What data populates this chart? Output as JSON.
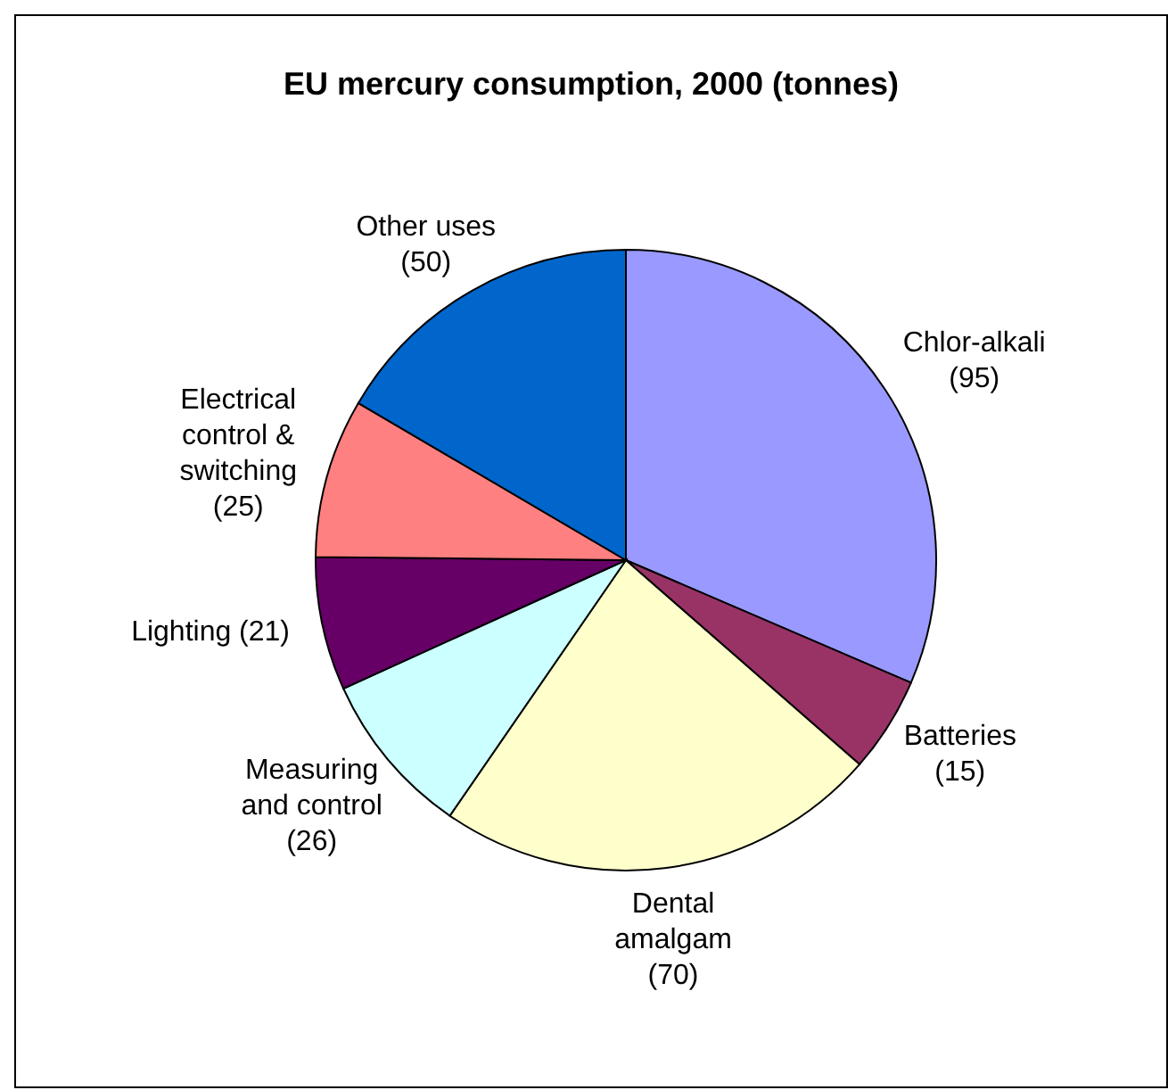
{
  "chart_data": {
    "type": "pie",
    "title": "EU mercury consumption, 2000 (tonnes)",
    "categories": [
      "Chlor-alkali",
      "Batteries",
      "Dental amalgam",
      "Measuring and control",
      "Lighting",
      "Electrical control & switching",
      "Other uses"
    ],
    "values": [
      95,
      15,
      70,
      26,
      21,
      25,
      50
    ],
    "colors": [
      "#9999ff",
      "#993366",
      "#ffffcc",
      "#ccffff",
      "#660066",
      "#ff8080",
      "#0066cc"
    ],
    "value_labels": [
      "(95)",
      "(15)",
      "(70)",
      "(26)",
      "(21)",
      "(25)",
      "(50)"
    ]
  }
}
